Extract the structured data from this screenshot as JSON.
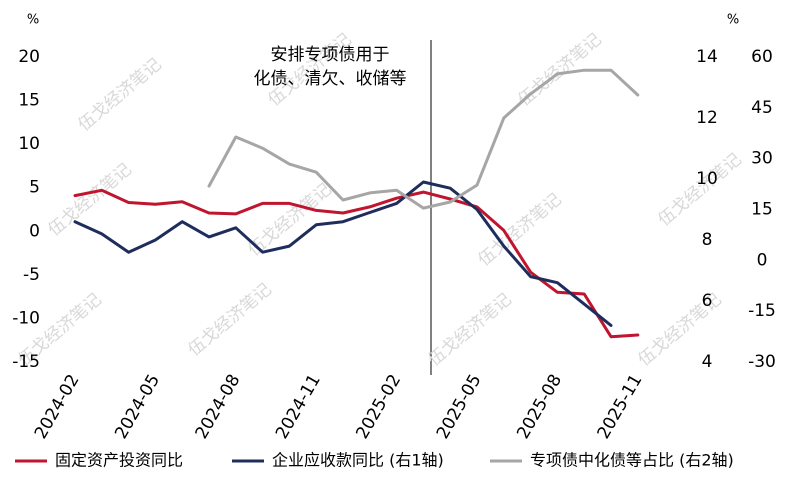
{
  "chart_data": {
    "type": "line",
    "watermark": "伍戈经济笔记",
    "y_unit": "%",
    "y2_unit": "%",
    "annotation": "安排专项债用于\n化债、清欠、收储等",
    "categories": [
      "2024-02",
      null,
      null,
      "2024-05",
      null,
      null,
      "2024-08",
      null,
      null,
      "2024-11",
      null,
      null,
      "2025-02",
      null,
      null,
      "2025-05",
      null,
      null,
      "2025-08",
      null,
      null,
      "2025-11"
    ],
    "ylim": [
      -15,
      20
    ],
    "yticks": [
      20,
      15,
      10,
      5,
      0,
      -5,
      -10,
      -15
    ],
    "y2lim": [
      4,
      14
    ],
    "y2ticks": [
      14,
      12,
      10,
      8,
      6,
      4
    ],
    "y3lim": [
      -30,
      60
    ],
    "y3ticks": [
      60,
      45,
      30,
      15,
      0,
      -15,
      -30
    ],
    "legend": "bottom",
    "series": [
      {
        "name": "固定资产投资同比",
        "color": "#c0152f",
        "axis": "y",
        "values": [
          4.1,
          4.7,
          3.3,
          3.1,
          3.4,
          2.1,
          2.0,
          3.2,
          3.2,
          2.4,
          2.1,
          2.8,
          3.8,
          4.5,
          3.7,
          2.8,
          0.1,
          -4.7,
          -7.0,
          -7.2,
          -12.1,
          -11.9
        ]
      },
      {
        "name": "企业应收款同比 (右1轴)",
        "color": "#1f2d5c",
        "axis": "y2",
        "values": [
          8.6,
          8.2,
          7.6,
          8.0,
          8.6,
          8.1,
          8.4,
          7.6,
          7.8,
          8.5,
          8.6,
          8.9,
          9.2,
          9.9,
          9.7,
          9.0,
          7.8,
          6.8,
          6.6,
          5.9,
          5.2,
          null
        ]
      },
      {
        "name": "专项债中化债等占比 (右2轴)",
        "color": "#a6a6a6",
        "axis": "y3",
        "values": [
          null,
          null,
          null,
          null,
          null,
          21.9,
          36.4,
          33.1,
          28.4,
          26.0,
          17.8,
          19.9,
          20.7,
          15.4,
          17.2,
          22.2,
          42.0,
          49.1,
          55.0,
          56.1,
          56.1,
          48.8
        ]
      }
    ]
  }
}
